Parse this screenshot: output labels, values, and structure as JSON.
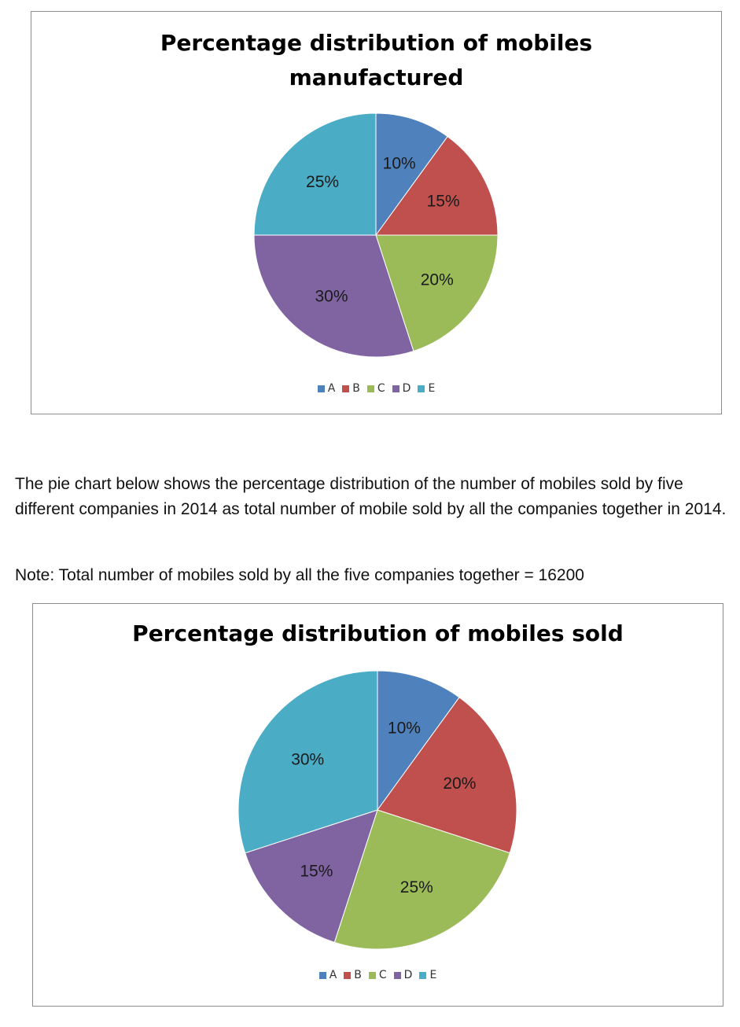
{
  "colors": {
    "A": "#4f81bd",
    "B": "#c0504d",
    "C": "#9bbb59",
    "D": "#8064a2",
    "E": "#4bacc6"
  },
  "intro_text": "The pie chart below shows the percentage distribution of the number of mobiles sold by five different companies in 2014 as total number of mobile sold by all the companies together in 2014.",
  "note_text": "Note: Total number of mobiles sold by all the five companies together = 16200",
  "chart_data": [
    {
      "type": "pie",
      "title": "Percentage distribution of mobiles manufactured",
      "categories": [
        "A",
        "B",
        "C",
        "D",
        "E"
      ],
      "values": [
        10,
        15,
        20,
        30,
        25
      ],
      "labels": [
        "10%",
        "15%",
        "20%",
        "30%",
        "25%"
      ],
      "legend_position": "bottom"
    },
    {
      "type": "pie",
      "title": "Percentage distribution of mobiles sold",
      "categories": [
        "A",
        "B",
        "C",
        "D",
        "E"
      ],
      "values": [
        10,
        20,
        25,
        15,
        30
      ],
      "labels": [
        "10%",
        "20%",
        "25%",
        "15%",
        "30%"
      ],
      "legend_position": "bottom"
    }
  ]
}
